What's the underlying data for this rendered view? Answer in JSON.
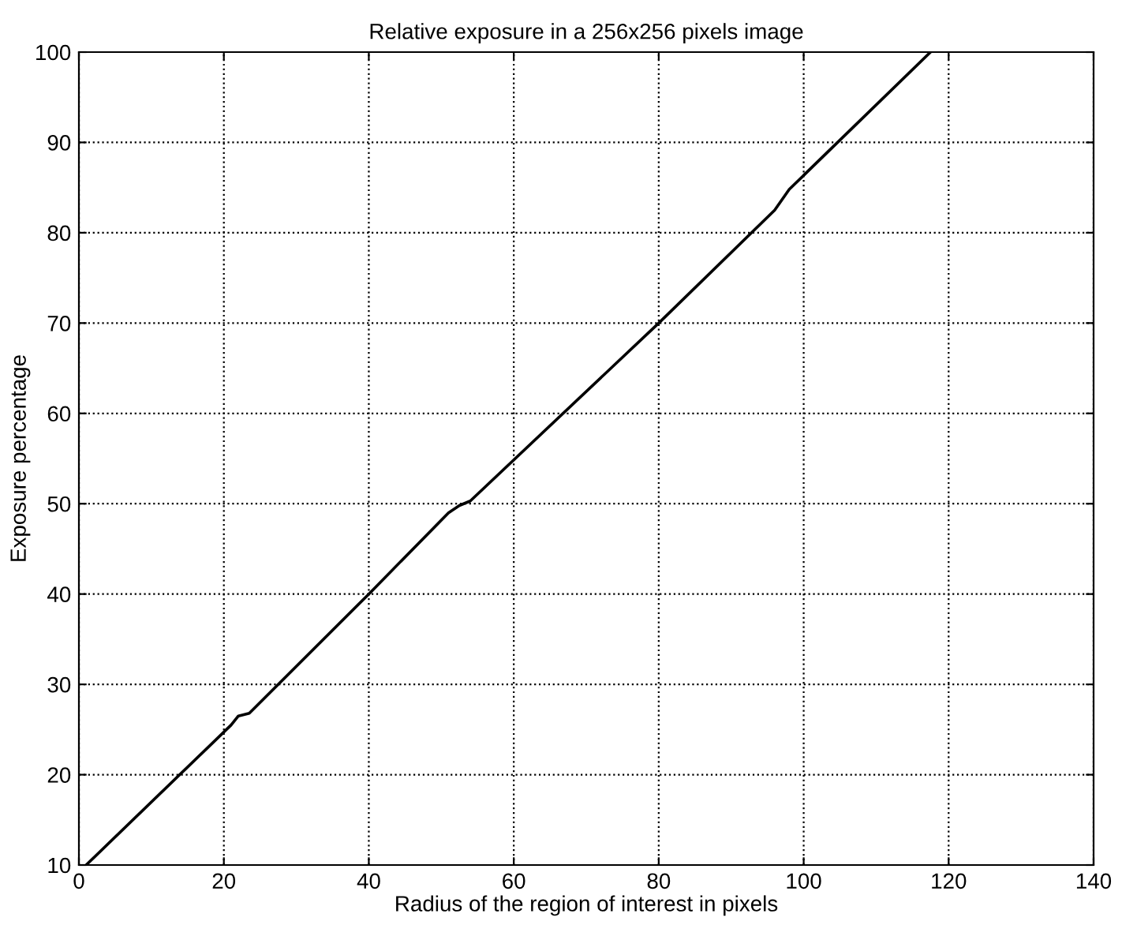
{
  "chart_data": {
    "type": "line",
    "title": "Relative exposure in a 256x256 pixels image",
    "xlabel": "Radius of the region of interest in pixels",
    "ylabel": "Exposure percentage",
    "series": [
      {
        "color": "#000000",
        "x": [
          1,
          21,
          22,
          23.5,
          40,
          51,
          52.5,
          54,
          80,
          96,
          98,
          117.5
        ],
        "values": [
          10,
          25.5,
          26.5,
          26.8,
          40,
          49,
          49.8,
          50.3,
          70,
          82.5,
          84.8,
          100
        ]
      }
    ],
    "xlim": [
      0,
      140
    ],
    "ylim": [
      10,
      100
    ],
    "xticks": [
      0,
      20,
      40,
      60,
      80,
      100,
      120,
      140
    ],
    "yticks": [
      10,
      20,
      30,
      40,
      50,
      60,
      70,
      80,
      90,
      100
    ],
    "grid": true,
    "line_style": "solid"
  }
}
